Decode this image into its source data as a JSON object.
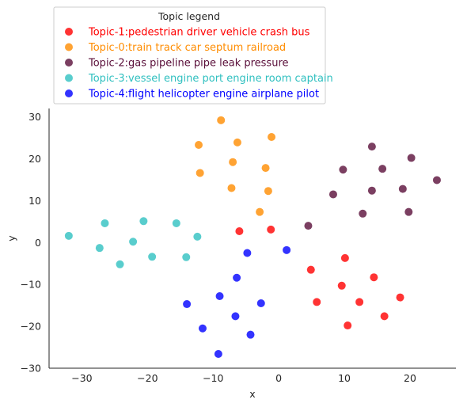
{
  "chart_data": {
    "type": "scatter",
    "xlabel": "x",
    "ylabel": "y",
    "xlim": [
      -35,
      27
    ],
    "ylim": [
      -30,
      32
    ],
    "xticks": [
      -30,
      -20,
      -10,
      0,
      10,
      20
    ],
    "yticks": [
      -30,
      -20,
      -10,
      0,
      10,
      20,
      30
    ],
    "xtick_labels": [
      "−30",
      "−20",
      "−10",
      "0",
      "10",
      "20"
    ],
    "ytick_labels": [
      "−30",
      "−20",
      "−10",
      "0",
      "10",
      "20",
      "30"
    ],
    "grid": false,
    "legend": {
      "title": "Topic legend",
      "placement": "top-left, above plot"
    },
    "series": [
      {
        "name": "Topic-1:pedestrian driver vehicle crash bus",
        "color": "#ff0000",
        "points": [
          [
            -6,
            2.7
          ],
          [
            -1.2,
            3.1
          ],
          [
            4.9,
            -6.5
          ],
          [
            5.8,
            -14.2
          ],
          [
            9.6,
            -10.3
          ],
          [
            10.1,
            -3.7
          ],
          [
            10.5,
            -19.8
          ],
          [
            12.3,
            -14.2
          ],
          [
            14.5,
            -8.3
          ],
          [
            16.1,
            -17.6
          ],
          [
            18.5,
            -13.1
          ]
        ]
      },
      {
        "name": "Topic-0:train track car septum railroad",
        "color": "#ff8c00",
        "points": [
          [
            -8.8,
            29.2
          ],
          [
            -12.2,
            23.3
          ],
          [
            -6.3,
            23.9
          ],
          [
            -1.1,
            25.2
          ],
          [
            -12.0,
            16.6
          ],
          [
            -7.0,
            19.2
          ],
          [
            -2.0,
            17.8
          ],
          [
            -7.2,
            13.0
          ],
          [
            -1.6,
            12.3
          ],
          [
            -2.9,
            7.3
          ]
        ]
      },
      {
        "name": "Topic-2:gas pipeline pipe leak pressure",
        "color": "#5a0f3a",
        "points": [
          [
            14.2,
            22.9
          ],
          [
            20.2,
            20.2
          ],
          [
            9.8,
            17.4
          ],
          [
            15.8,
            17.6
          ],
          [
            24.1,
            14.9
          ],
          [
            8.3,
            11.5
          ],
          [
            14.2,
            12.4
          ],
          [
            18.9,
            12.8
          ],
          [
            12.8,
            6.9
          ],
          [
            19.8,
            7.3
          ],
          [
            4.5,
            4.0
          ]
        ]
      },
      {
        "name": "Topic-3:vessel engine port engine room captain",
        "color": "#30c0c0",
        "points": [
          [
            -32.0,
            1.6
          ],
          [
            -26.5,
            4.6
          ],
          [
            -20.6,
            5.1
          ],
          [
            -15.6,
            4.6
          ],
          [
            -22.2,
            0.2
          ],
          [
            -27.3,
            -1.3
          ],
          [
            -12.4,
            1.4
          ],
          [
            -24.2,
            -5.2
          ],
          [
            -19.3,
            -3.4
          ],
          [
            -14.1,
            -3.5
          ]
        ]
      },
      {
        "name": "Topic-4:flight helicopter engine airplane pilot",
        "color": "#0000ff",
        "points": [
          [
            1.2,
            -1.8
          ],
          [
            -4.8,
            -2.5
          ],
          [
            -6.4,
            -8.4
          ],
          [
            -14.0,
            -14.7
          ],
          [
            -9.0,
            -12.8
          ],
          [
            -2.7,
            -14.5
          ],
          [
            -6.6,
            -17.6
          ],
          [
            -11.6,
            -20.5
          ],
          [
            -4.3,
            -22.0
          ],
          [
            -9.2,
            -26.6
          ]
        ]
      }
    ]
  }
}
